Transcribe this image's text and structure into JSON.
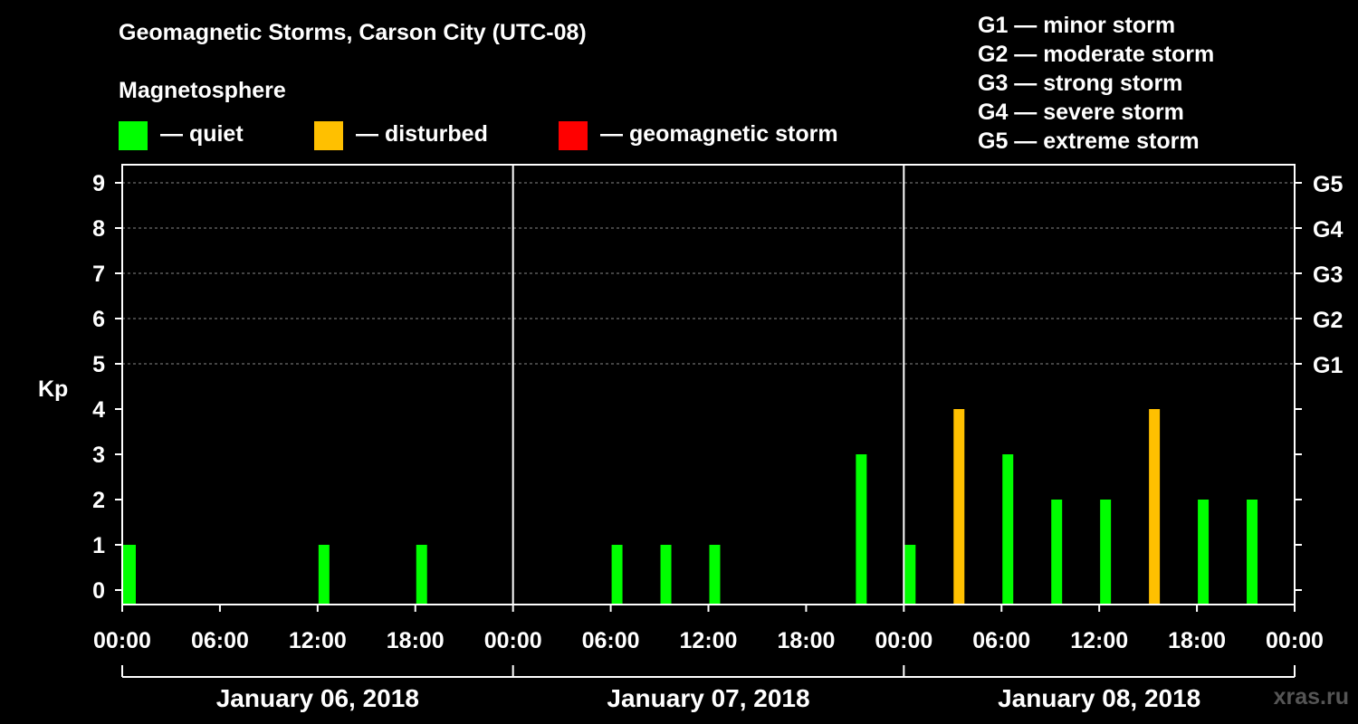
{
  "title": "Geomagnetic Storms, Carson City (UTC-08)",
  "legend": {
    "heading": "Magnetosphere",
    "items": [
      {
        "label": "— quiet",
        "color": "#00ff00"
      },
      {
        "label": "— disturbed",
        "color": "#ffc000"
      },
      {
        "label": "— geomagnetic storm",
        "color": "#ff0000"
      }
    ]
  },
  "g_scale": [
    "G1 — minor storm",
    "G2 — moderate storm",
    "G3 — strong storm",
    "G4 — severe storm",
    "G5 — extreme storm"
  ],
  "watermark": "xras.ru",
  "chart_data": {
    "type": "bar",
    "ylabel": "Kp",
    "ylim": [
      0,
      9
    ],
    "yticks": [
      0,
      1,
      2,
      3,
      4,
      5,
      6,
      7,
      8,
      9
    ],
    "right_ticks": [
      {
        "kp": 5,
        "label": "G1"
      },
      {
        "kp": 6,
        "label": "G2"
      },
      {
        "kp": 7,
        "label": "G3"
      },
      {
        "kp": 8,
        "label": "G4"
      },
      {
        "kp": 9,
        "label": "G5"
      }
    ],
    "xticks": [
      "00:00",
      "06:00",
      "12:00",
      "18:00",
      "00:00",
      "06:00",
      "12:00",
      "18:00",
      "00:00",
      "06:00",
      "12:00",
      "18:00",
      "00:00"
    ],
    "days": [
      "January 06, 2018",
      "January 07, 2018",
      "January 08, 2018"
    ],
    "grid": "dashed horizontal at Kp 5-9",
    "bars": [
      {
        "day": "January 06, 2018",
        "hour": 0,
        "kp": 1,
        "status": "quiet"
      },
      {
        "day": "January 06, 2018",
        "hour": 3,
        "kp": 0,
        "status": "quiet"
      },
      {
        "day": "January 06, 2018",
        "hour": 6,
        "kp": 0,
        "status": "quiet"
      },
      {
        "day": "January 06, 2018",
        "hour": 9,
        "kp": 0,
        "status": "quiet"
      },
      {
        "day": "January 06, 2018",
        "hour": 12,
        "kp": 1,
        "status": "quiet"
      },
      {
        "day": "January 06, 2018",
        "hour": 15,
        "kp": 0,
        "status": "quiet"
      },
      {
        "day": "January 06, 2018",
        "hour": 18,
        "kp": 1,
        "status": "quiet"
      },
      {
        "day": "January 06, 2018",
        "hour": 21,
        "kp": 0,
        "status": "quiet"
      },
      {
        "day": "January 07, 2018",
        "hour": 0,
        "kp": 0,
        "status": "quiet"
      },
      {
        "day": "January 07, 2018",
        "hour": 3,
        "kp": 0,
        "status": "quiet"
      },
      {
        "day": "January 07, 2018",
        "hour": 6,
        "kp": 1,
        "status": "quiet"
      },
      {
        "day": "January 07, 2018",
        "hour": 9,
        "kp": 1,
        "status": "quiet"
      },
      {
        "day": "January 07, 2018",
        "hour": 12,
        "kp": 1,
        "status": "quiet"
      },
      {
        "day": "January 07, 2018",
        "hour": 15,
        "kp": 0,
        "status": "quiet"
      },
      {
        "day": "January 07, 2018",
        "hour": 18,
        "kp": 0,
        "status": "quiet"
      },
      {
        "day": "January 07, 2018",
        "hour": 21,
        "kp": 3,
        "status": "quiet"
      },
      {
        "day": "January 08, 2018",
        "hour": 0,
        "kp": 1,
        "status": "quiet"
      },
      {
        "day": "January 08, 2018",
        "hour": 3,
        "kp": 4,
        "status": "disturbed"
      },
      {
        "day": "January 08, 2018",
        "hour": 6,
        "kp": 3,
        "status": "quiet"
      },
      {
        "day": "January 08, 2018",
        "hour": 9,
        "kp": 2,
        "status": "quiet"
      },
      {
        "day": "January 08, 2018",
        "hour": 12,
        "kp": 2,
        "status": "quiet"
      },
      {
        "day": "January 08, 2018",
        "hour": 15,
        "kp": 4,
        "status": "disturbed"
      },
      {
        "day": "January 08, 2018",
        "hour": 18,
        "kp": 2,
        "status": "quiet"
      },
      {
        "day": "January 08, 2018",
        "hour": 21,
        "kp": 2,
        "status": "quiet"
      }
    ]
  }
}
